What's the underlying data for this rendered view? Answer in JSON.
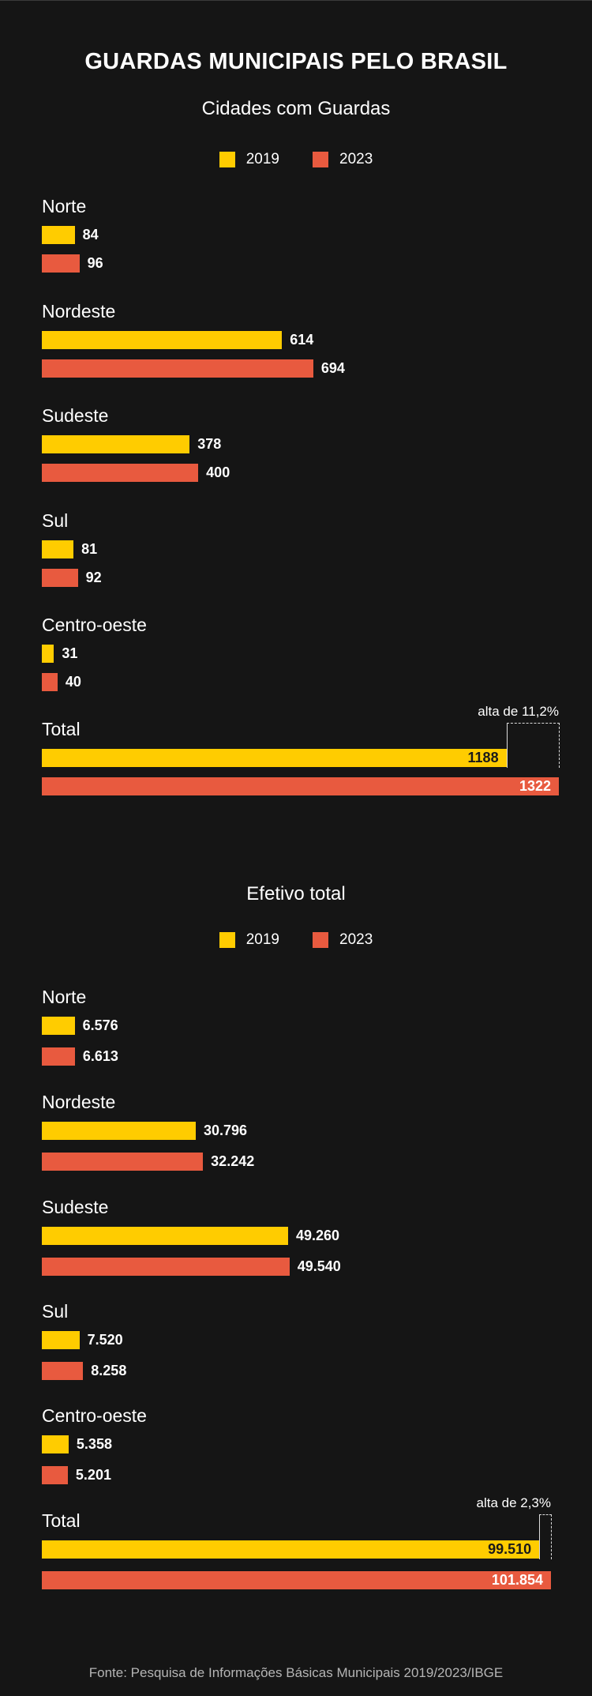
{
  "title": "GUARDAS MUNICIPAIS PELO BRASIL",
  "source": "Fonte: Pesquisa de Informações Básicas Municipais 2019/2023/IBGE",
  "colors": {
    "y2019": "#FFCC00",
    "y2023": "#E85A3F",
    "background": "#151515"
  },
  "legend": {
    "y2019": "2019",
    "y2023": "2023"
  },
  "chart_data": [
    {
      "type": "bar",
      "orientation": "horizontal",
      "title": "Cidades com Guardas",
      "categories": [
        "Norte",
        "Nordeste",
        "Sudeste",
        "Sul",
        "Centro-oeste",
        "Total"
      ],
      "series": [
        {
          "name": "2019",
          "values": [
            84,
            614,
            378,
            81,
            31,
            1188
          ],
          "labels": [
            "84",
            "614",
            "378",
            "81",
            "31",
            "1188"
          ]
        },
        {
          "name": "2023",
          "values": [
            96,
            694,
            400,
            92,
            40,
            1322
          ],
          "labels": [
            "96",
            "694",
            "400",
            "92",
            "40",
            "1322"
          ]
        }
      ],
      "annotation": "alta de 11,2%",
      "grid": false,
      "legend_position": "top-center"
    },
    {
      "type": "bar",
      "orientation": "horizontal",
      "title": "Efetivo total",
      "categories": [
        "Norte",
        "Nordeste",
        "Sudeste",
        "Sul",
        "Centro-oeste",
        "Total"
      ],
      "series": [
        {
          "name": "2019",
          "values": [
            6576,
            30796,
            49260,
            7520,
            5358,
            99510
          ],
          "labels": [
            "6.576",
            "30.796",
            "49.260",
            "7.520",
            "5.358",
            "99.510"
          ]
        },
        {
          "name": "2023",
          "values": [
            6613,
            32242,
            49540,
            8258,
            5201,
            101854
          ],
          "labels": [
            "6.613",
            "32.242",
            "49.540",
            "8.258",
            "5.201",
            "101.854"
          ]
        }
      ],
      "annotation": "alta de 2,3%",
      "grid": false,
      "legend_position": "top-center"
    }
  ]
}
